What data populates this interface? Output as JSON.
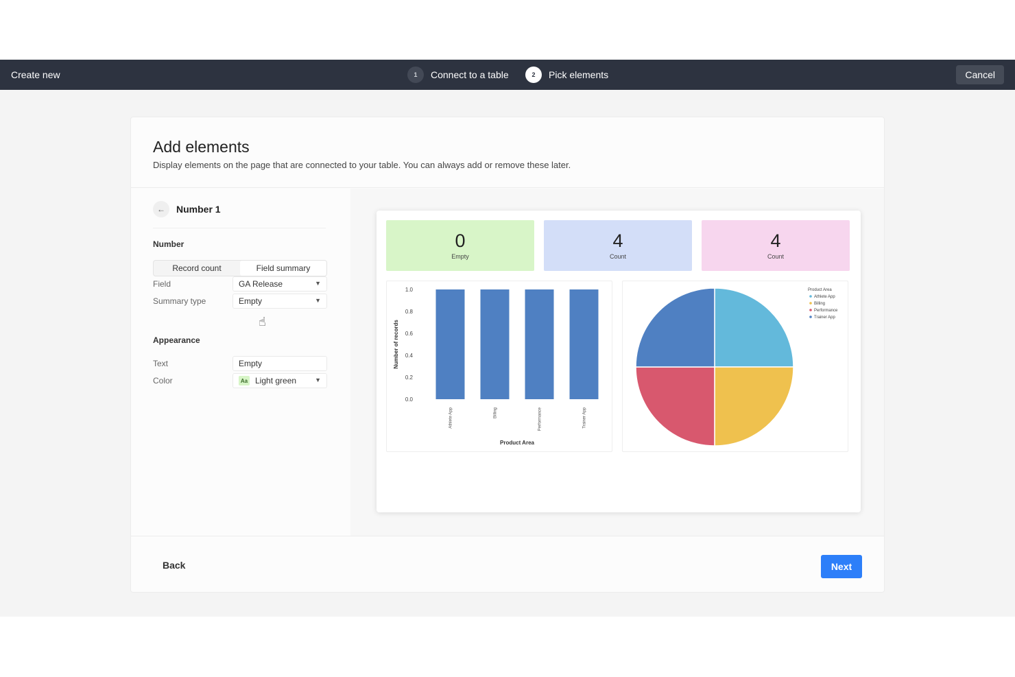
{
  "topbar": {
    "create_label": "Create new",
    "steps": [
      {
        "num": "1",
        "label": "Connect to a table"
      },
      {
        "num": "2",
        "label": "Pick elements"
      }
    ],
    "cancel_label": "Cancel"
  },
  "header": {
    "title": "Add elements",
    "subtitle": "Display elements on the page that are connected to your table. You can always add or remove these later."
  },
  "editor": {
    "crumb_title": "Number 1",
    "number_section": "Number",
    "segments": [
      "Record count",
      "Field summary"
    ],
    "field_label": "Field",
    "field_value": "GA Release",
    "summary_label": "Summary type",
    "summary_value": "Empty",
    "appearance_section": "Appearance",
    "text_label": "Text",
    "text_value": "Empty",
    "color_label": "Color",
    "color_swatch": "Aa",
    "color_value": "Light green"
  },
  "preview": {
    "tiles": [
      {
        "value": "0",
        "caption": "Empty",
        "color": "#d8f5c8"
      },
      {
        "value": "4",
        "caption": "Count",
        "color": "#d3def8"
      },
      {
        "value": "4",
        "caption": "Count",
        "color": "#f7d6ee"
      }
    ]
  },
  "chart_data": [
    {
      "type": "bar",
      "categories": [
        "Athlete App",
        "Billing",
        "Performance",
        "Trainer App"
      ],
      "values": [
        1,
        1,
        1,
        1
      ],
      "xlabel": "Product Area",
      "ylabel": "Number of records",
      "ylim": [
        0,
        1
      ],
      "yticks": [
        "1.0",
        "0.8",
        "0.6",
        "0.4",
        "0.2",
        "0.0"
      ],
      "color": "#4f80c2"
    },
    {
      "type": "pie",
      "legend_title": "Product Area",
      "legend_position": "top-right",
      "slices": [
        {
          "name": "Athlete App",
          "value": 1,
          "color": "#63b9db"
        },
        {
          "name": "Billing",
          "value": 1,
          "color": "#efc14e"
        },
        {
          "name": "Performance",
          "value": 1,
          "color": "#d8586e"
        },
        {
          "name": "Trainer App",
          "value": 1,
          "color": "#4f80c2"
        }
      ]
    }
  ],
  "footer": {
    "back_label": "Back",
    "next_label": "Next"
  }
}
